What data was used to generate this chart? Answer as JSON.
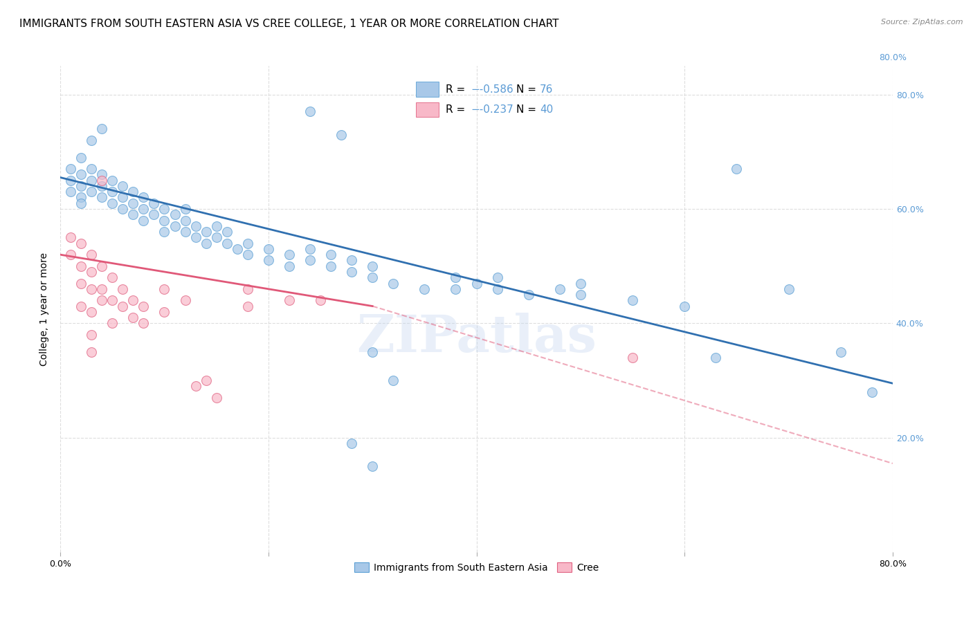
{
  "title": "IMMIGRANTS FROM SOUTH EASTERN ASIA VS CREE COLLEGE, 1 YEAR OR MORE CORRELATION CHART",
  "source": "Source: ZipAtlas.com",
  "ylabel": "College, 1 year or more",
  "xlim": [
    0.0,
    0.8
  ],
  "ylim": [
    0.0,
    0.85
  ],
  "watermark": "ZIPatlas",
  "blue_color": "#a8c8e8",
  "blue_edge_color": "#5a9fd4",
  "pink_color": "#f8b8c8",
  "pink_edge_color": "#e06080",
  "blue_line_color": "#3070b0",
  "pink_line_color": "#e05878",
  "blue_scatter": [
    [
      0.01,
      0.67
    ],
    [
      0.01,
      0.65
    ],
    [
      0.01,
      0.63
    ],
    [
      0.02,
      0.69
    ],
    [
      0.02,
      0.66
    ],
    [
      0.02,
      0.64
    ],
    [
      0.02,
      0.62
    ],
    [
      0.02,
      0.61
    ],
    [
      0.03,
      0.67
    ],
    [
      0.03,
      0.65
    ],
    [
      0.03,
      0.72
    ],
    [
      0.03,
      0.63
    ],
    [
      0.04,
      0.66
    ],
    [
      0.04,
      0.64
    ],
    [
      0.04,
      0.74
    ],
    [
      0.04,
      0.62
    ],
    [
      0.05,
      0.65
    ],
    [
      0.05,
      0.63
    ],
    [
      0.05,
      0.61
    ],
    [
      0.06,
      0.64
    ],
    [
      0.06,
      0.62
    ],
    [
      0.06,
      0.6
    ],
    [
      0.07,
      0.63
    ],
    [
      0.07,
      0.61
    ],
    [
      0.07,
      0.59
    ],
    [
      0.08,
      0.62
    ],
    [
      0.08,
      0.6
    ],
    [
      0.08,
      0.58
    ],
    [
      0.09,
      0.61
    ],
    [
      0.09,
      0.59
    ],
    [
      0.1,
      0.6
    ],
    [
      0.1,
      0.58
    ],
    [
      0.1,
      0.56
    ],
    [
      0.11,
      0.59
    ],
    [
      0.11,
      0.57
    ],
    [
      0.12,
      0.58
    ],
    [
      0.12,
      0.56
    ],
    [
      0.12,
      0.6
    ],
    [
      0.13,
      0.57
    ],
    [
      0.13,
      0.55
    ],
    [
      0.14,
      0.56
    ],
    [
      0.14,
      0.54
    ],
    [
      0.15,
      0.55
    ],
    [
      0.15,
      0.57
    ],
    [
      0.16,
      0.54
    ],
    [
      0.16,
      0.56
    ],
    [
      0.17,
      0.53
    ],
    [
      0.18,
      0.52
    ],
    [
      0.18,
      0.54
    ],
    [
      0.2,
      0.51
    ],
    [
      0.2,
      0.53
    ],
    [
      0.22,
      0.5
    ],
    [
      0.22,
      0.52
    ],
    [
      0.24,
      0.51
    ],
    [
      0.24,
      0.53
    ],
    [
      0.26,
      0.5
    ],
    [
      0.26,
      0.52
    ],
    [
      0.28,
      0.49
    ],
    [
      0.28,
      0.51
    ],
    [
      0.3,
      0.48
    ],
    [
      0.3,
      0.5
    ],
    [
      0.32,
      0.47
    ],
    [
      0.35,
      0.46
    ],
    [
      0.38,
      0.46
    ],
    [
      0.38,
      0.48
    ],
    [
      0.4,
      0.47
    ],
    [
      0.42,
      0.48
    ],
    [
      0.42,
      0.46
    ],
    [
      0.45,
      0.45
    ],
    [
      0.48,
      0.46
    ],
    [
      0.5,
      0.45
    ],
    [
      0.5,
      0.47
    ],
    [
      0.55,
      0.44
    ],
    [
      0.6,
      0.43
    ],
    [
      0.63,
      0.34
    ],
    [
      0.65,
      0.67
    ],
    [
      0.7,
      0.46
    ],
    [
      0.75,
      0.35
    ],
    [
      0.78,
      0.28
    ],
    [
      0.24,
      0.77
    ],
    [
      0.27,
      0.73
    ],
    [
      0.3,
      0.35
    ],
    [
      0.32,
      0.3
    ],
    [
      0.28,
      0.19
    ],
    [
      0.3,
      0.15
    ]
  ],
  "pink_scatter": [
    [
      0.01,
      0.55
    ],
    [
      0.01,
      0.52
    ],
    [
      0.02,
      0.54
    ],
    [
      0.02,
      0.5
    ],
    [
      0.02,
      0.47
    ],
    [
      0.02,
      0.43
    ],
    [
      0.03,
      0.52
    ],
    [
      0.03,
      0.49
    ],
    [
      0.03,
      0.46
    ],
    [
      0.03,
      0.42
    ],
    [
      0.03,
      0.38
    ],
    [
      0.03,
      0.35
    ],
    [
      0.04,
      0.65
    ],
    [
      0.04,
      0.5
    ],
    [
      0.04,
      0.46
    ],
    [
      0.04,
      0.44
    ],
    [
      0.05,
      0.48
    ],
    [
      0.05,
      0.44
    ],
    [
      0.05,
      0.4
    ],
    [
      0.06,
      0.46
    ],
    [
      0.06,
      0.43
    ],
    [
      0.07,
      0.44
    ],
    [
      0.07,
      0.41
    ],
    [
      0.08,
      0.43
    ],
    [
      0.08,
      0.4
    ],
    [
      0.1,
      0.46
    ],
    [
      0.1,
      0.42
    ],
    [
      0.12,
      0.44
    ],
    [
      0.13,
      0.29
    ],
    [
      0.14,
      0.3
    ],
    [
      0.15,
      0.27
    ],
    [
      0.18,
      0.46
    ],
    [
      0.18,
      0.43
    ],
    [
      0.22,
      0.44
    ],
    [
      0.25,
      0.44
    ],
    [
      0.55,
      0.34
    ]
  ],
  "blue_line": {
    "x0": 0.0,
    "y0": 0.655,
    "x1": 0.8,
    "y1": 0.295
  },
  "pink_line_solid": {
    "x0": 0.0,
    "y0": 0.52,
    "x1": 0.3,
    "y1": 0.43
  },
  "pink_line_dashed": {
    "x0": 0.3,
    "y0": 0.43,
    "x1": 0.8,
    "y1": 0.155
  },
  "legend_r1": "-0.586",
  "legend_n1": "76",
  "legend_r2": "-0.237",
  "legend_n2": "40",
  "bottom_legend_blue": "Immigrants from South Eastern Asia",
  "bottom_legend_pink": "Cree",
  "title_fontsize": 11,
  "axis_label_fontsize": 10,
  "tick_fontsize": 9,
  "right_tick_color": "#5b9bd5",
  "grid_color": "#dddddd"
}
